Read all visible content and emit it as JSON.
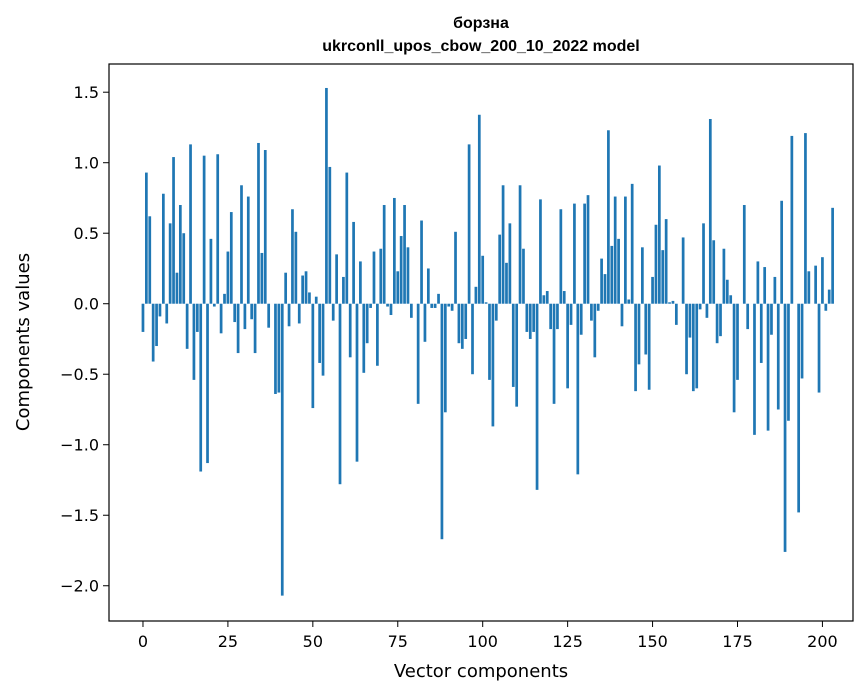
{
  "chart_data": {
    "type": "bar",
    "title": "борзна",
    "subtitle": "ukrconll_upos_cbow_200_10_2022 model",
    "xlabel": "Vector components",
    "ylabel": "Components values",
    "xlim": [
      -10,
      209
    ],
    "ylim": [
      -2.25,
      1.7
    ],
    "xticks": [
      0,
      25,
      50,
      75,
      100,
      125,
      150,
      175,
      200
    ],
    "xtick_labels": [
      "0",
      "25",
      "50",
      "75",
      "100",
      "125",
      "150",
      "175",
      "200"
    ],
    "yticks": [
      1.5,
      1.0,
      0.5,
      0.0,
      -0.5,
      -1.0,
      -1.5,
      -2.0
    ],
    "ytick_labels": [
      "1.5",
      "1.0",
      "0.5",
      "0.0",
      "−0.5",
      "−1.0",
      "−1.5",
      "−2.0"
    ],
    "grid": false,
    "bar_color": "#1f77b4",
    "values": [
      -0.2,
      0.93,
      0.62,
      -0.41,
      -0.3,
      -0.09,
      0.78,
      -0.14,
      0.57,
      1.04,
      0.22,
      0.7,
      0.5,
      -0.32,
      1.13,
      -0.54,
      -0.2,
      -1.19,
      1.05,
      -1.13,
      0.46,
      -0.02,
      1.06,
      -0.21,
      0.07,
      0.37,
      0.65,
      -0.13,
      -0.35,
      0.84,
      -0.18,
      0.76,
      -0.11,
      -0.35,
      1.14,
      0.36,
      1.09,
      -0.17,
      0.0,
      -0.64,
      -0.63,
      -2.07,
      0.22,
      -0.16,
      0.67,
      0.51,
      -0.14,
      0.2,
      0.23,
      0.08,
      -0.74,
      0.05,
      -0.42,
      -0.51,
      1.53,
      0.97,
      -0.12,
      0.35,
      -1.28,
      0.19,
      0.93,
      -0.38,
      0.58,
      -1.12,
      0.3,
      -0.49,
      -0.28,
      -0.03,
      0.37,
      -0.44,
      0.39,
      0.7,
      -0.02,
      -0.08,
      0.75,
      0.23,
      0.48,
      0.7,
      0.4,
      -0.1,
      0.0,
      -0.71,
      0.59,
      -0.27,
      0.25,
      -0.03,
      -0.03,
      0.07,
      -1.67,
      -0.77,
      -0.02,
      -0.05,
      0.51,
      -0.28,
      -0.32,
      -0.25,
      1.13,
      -0.5,
      0.12,
      1.34,
      0.34,
      0.01,
      -0.54,
      -0.87,
      -0.12,
      0.49,
      0.84,
      0.29,
      0.57,
      -0.59,
      -0.73,
      0.84,
      0.39,
      -0.2,
      -0.25,
      -0.2,
      -1.32,
      0.74,
      0.06,
      0.09,
      -0.18,
      -0.71,
      -0.18,
      0.67,
      0.09,
      -0.6,
      -0.15,
      0.71,
      -1.21,
      -0.22,
      0.71,
      0.77,
      -0.12,
      -0.38,
      -0.05,
      0.32,
      0.21,
      1.23,
      0.41,
      0.76,
      0.46,
      -0.16,
      0.76,
      0.03,
      0.85,
      -0.62,
      -0.43,
      0.4,
      -0.36,
      -0.61,
      0.19,
      0.56,
      0.98,
      0.38,
      0.6,
      0.01,
      0.02,
      -0.15,
      0.0,
      0.47,
      -0.5,
      -0.24,
      -0.62,
      -0.6,
      -0.04,
      0.57,
      -0.1,
      1.31,
      0.45,
      -0.28,
      -0.23,
      0.39,
      0.17,
      0.06,
      -0.77,
      -0.54,
      0.0,
      0.7,
      -0.18,
      0.0,
      -0.93,
      0.3,
      -0.42,
      0.26,
      -0.9,
      -0.22,
      0.19,
      -0.75,
      0.73,
      -1.76,
      -0.83,
      1.19,
      0.0,
      -1.48,
      -0.53,
      1.21,
      0.23,
      0.0,
      0.27,
      -0.63,
      0.33,
      -0.05,
      0.1,
      0.68
    ]
  }
}
